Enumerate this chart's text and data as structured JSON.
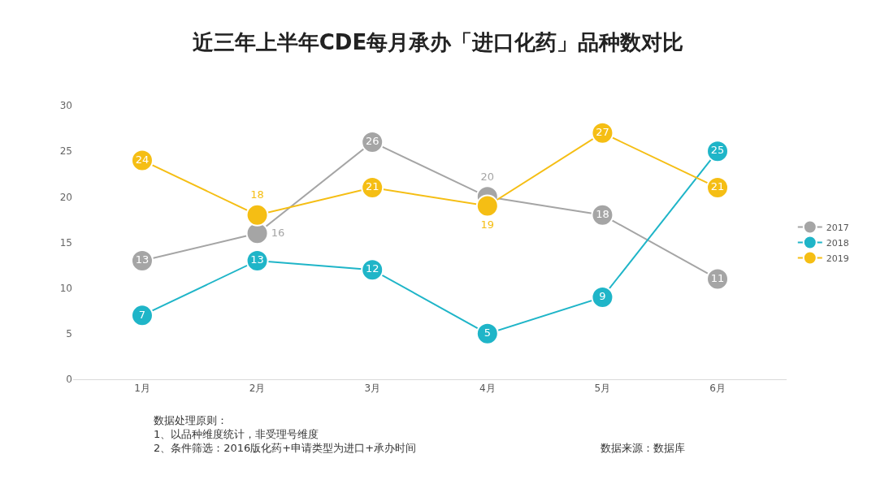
{
  "chart_data": {
    "type": "line",
    "title": "近三年上半年CDE每月承办「进口化药」品种数对比",
    "categories": [
      "1月",
      "2月",
      "3月",
      "4月",
      "5月",
      "6月"
    ],
    "series": [
      {
        "name": "2017",
        "color": "#a5a5a5",
        "values": [
          13,
          16,
          26,
          20,
          18,
          11
        ]
      },
      {
        "name": "2018",
        "color": "#1fb5c8",
        "values": [
          7,
          13,
          12,
          5,
          9,
          25
        ]
      },
      {
        "name": "2019",
        "color": "#f5be14",
        "values": [
          24,
          18,
          21,
          19,
          27,
          21
        ]
      }
    ],
    "ylim": [
      0,
      30
    ],
    "yticks": [
      0,
      5,
      10,
      15,
      20,
      25,
      30
    ],
    "legend": "right",
    "marker": "circle",
    "line_style": "solid",
    "data_labels": true,
    "annotations": [
      "数据处理原则：\n1、以品种维度统计，非受理号维度\n2、条件筛选：2016版化药+申请类型为进口+承办时间",
      "数据来源：数据库"
    ]
  }
}
